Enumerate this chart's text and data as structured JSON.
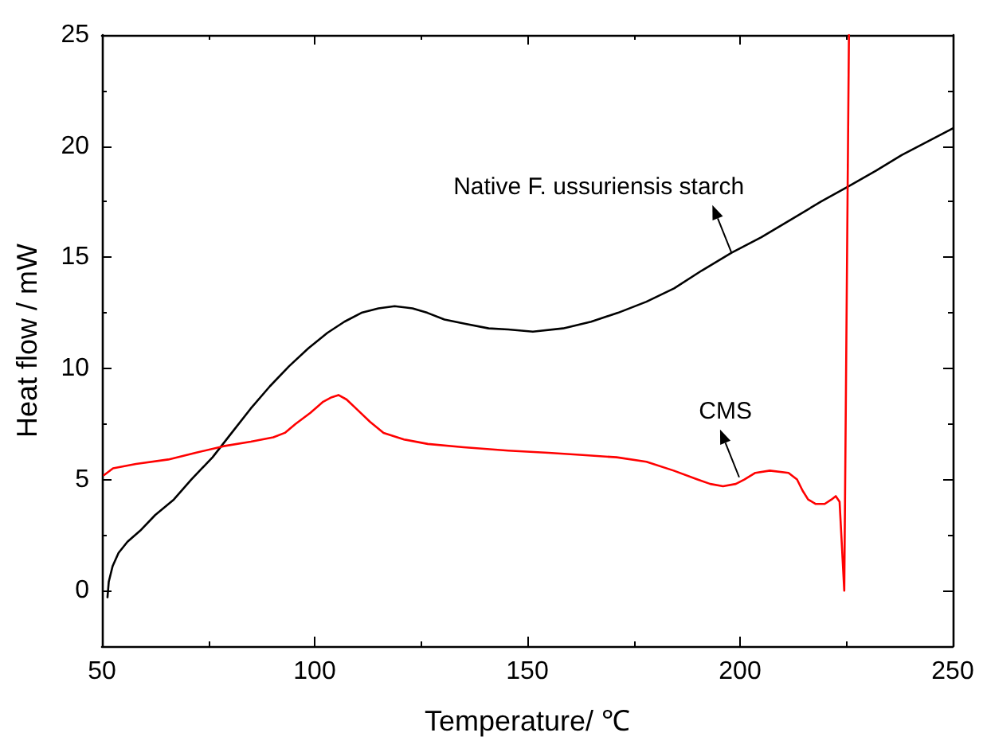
{
  "chart_data": {
    "type": "line",
    "xlabel": "Temperature/ ℃",
    "ylabel": "Heat flow / mW",
    "xlim": [
      50,
      250
    ],
    "xticks": [
      50,
      100,
      150,
      200,
      250
    ],
    "ylim": [
      -2.5,
      25
    ],
    "yticks": [
      0,
      5,
      10,
      15,
      20,
      25
    ],
    "grid": false,
    "marker": "none",
    "line_style": "solid",
    "series": [
      {
        "color": "#000000",
        "x": [
          51.3,
          51.6,
          52.5,
          53.9,
          56,
          59,
          62.5,
          66.9,
          71,
          76,
          80.5,
          85,
          89.5,
          94,
          98.5,
          103,
          107,
          111,
          115,
          118.8,
          123,
          126.5,
          130.5,
          135.5,
          140.9,
          145.5,
          151.3,
          158.4,
          165,
          171.3,
          178,
          184.5,
          191,
          198,
          205,
          212,
          219,
          225.6,
          232,
          238,
          244,
          250
        ],
        "values": [
          -0.3,
          0.4,
          1.1,
          1.7,
          2.2,
          2.7,
          3.4,
          4.1,
          5.0,
          6.0,
          7.1,
          8.2,
          9.2,
          10.1,
          10.9,
          11.6,
          12.1,
          12.5,
          12.7,
          12.8,
          12.7,
          12.5,
          12.2,
          12.0,
          11.8,
          11.75,
          11.65,
          11.8,
          12.1,
          12.5,
          13.0,
          13.6,
          14.4,
          15.2,
          15.9,
          16.7,
          17.5,
          18.2,
          18.9,
          19.6,
          20.2,
          20.8
        ]
      },
      {
        "color": "#ff0000",
        "x": [
          50.5,
          52.6,
          58,
          65.6,
          72,
          78.6,
          85,
          90.3,
          93,
          95.5,
          99,
          102,
          104,
          105.6,
          107.5,
          109.7,
          113,
          116.2,
          121,
          126.6,
          135,
          145.5,
          155,
          163,
          171,
          178,
          184.4,
          190,
          193,
          196,
          199,
          201,
          203.6,
          207,
          211.4,
          213.4,
          214.7,
          216,
          217.8,
          219.9,
          221.5,
          222.5,
          223.4,
          224.5,
          225.6
        ],
        "values": [
          5.2,
          5.5,
          5.7,
          5.9,
          6.2,
          6.5,
          6.7,
          6.9,
          7.1,
          7.5,
          8.0,
          8.5,
          8.7,
          8.8,
          8.6,
          8.2,
          7.6,
          7.1,
          6.8,
          6.6,
          6.45,
          6.3,
          6.2,
          6.1,
          6.0,
          5.8,
          5.4,
          5.0,
          4.8,
          4.7,
          4.8,
          5.0,
          5.3,
          5.4,
          5.3,
          5.0,
          4.5,
          4.1,
          3.9,
          3.9,
          4.1,
          4.25,
          4.0,
          0,
          25
        ]
      }
    ],
    "annotations": [
      {
        "text": "Native F. ussuriensis starch",
        "x": 198,
        "y": 15.2
      },
      {
        "text": "CMS",
        "x": 199.8,
        "y": 5.1
      }
    ]
  }
}
